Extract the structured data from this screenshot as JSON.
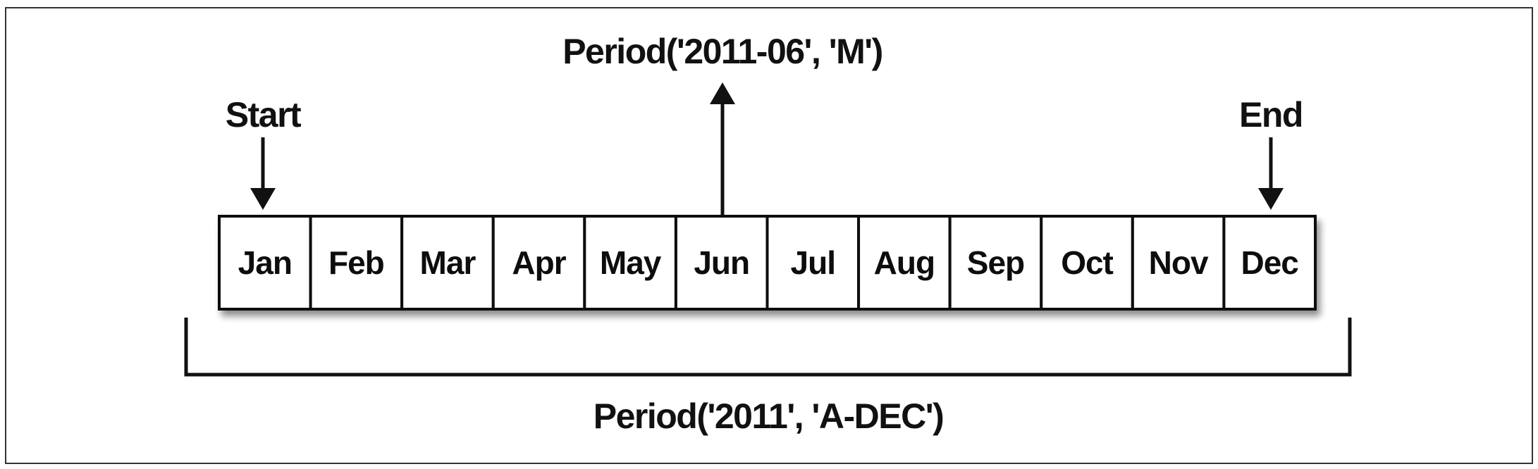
{
  "monthly_period_label": "Period('2011-06', 'M')",
  "annual_period_label": "Period('2011', 'A-DEC')",
  "start_label": "Start",
  "end_label": "End",
  "months": [
    "Jan",
    "Feb",
    "Mar",
    "Apr",
    "May",
    "Jun",
    "Jul",
    "Aug",
    "Sep",
    "Oct",
    "Nov",
    "Dec"
  ]
}
